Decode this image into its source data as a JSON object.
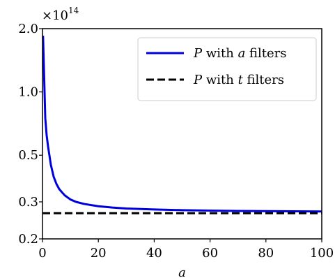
{
  "chart_data": {
    "type": "line",
    "xlabel": "a",
    "ylabel": "",
    "xlim": [
      0,
      100
    ],
    "ylim": [
      0.2,
      2.0
    ],
    "yscale": "log",
    "y_multiplier_label": "×10",
    "y_multiplier_exponent": "14",
    "x_ticks": [
      0,
      20,
      40,
      60,
      80,
      100
    ],
    "x_tick_labels": [
      "0",
      "20",
      "40",
      "60",
      "80",
      "100"
    ],
    "y_ticks": [
      0.2,
      0.3,
      0.5,
      1.0,
      2.0
    ],
    "y_tick_labels": [
      "0.2",
      "0.3",
      "0.5",
      "1.0",
      "2.0"
    ],
    "grid": false,
    "legend_position": "top-right",
    "series": [
      {
        "name_prefix": "P",
        "name_mid": " with ",
        "name_var": "a",
        "name_suffix": " filters",
        "color": "#0000dd",
        "style": "solid",
        "x": [
          0.2,
          1,
          1.5,
          2,
          3,
          4,
          5,
          6,
          7,
          8,
          10,
          12,
          15,
          20,
          25,
          30,
          40,
          50,
          60,
          70,
          80,
          90,
          100
        ],
        "y": [
          1.85,
          0.75,
          0.62,
          0.55,
          0.45,
          0.395,
          0.365,
          0.345,
          0.333,
          0.322,
          0.308,
          0.3,
          0.293,
          0.286,
          0.282,
          0.279,
          0.276,
          0.274,
          0.2725,
          0.2715,
          0.271,
          0.2705,
          0.27
        ]
      },
      {
        "name_prefix": "P",
        "name_mid": " with ",
        "name_var": "t",
        "name_suffix": " filters",
        "color": "#000000",
        "style": "dashed",
        "x": [
          0,
          100
        ],
        "y": [
          0.265,
          0.265
        ]
      }
    ]
  }
}
